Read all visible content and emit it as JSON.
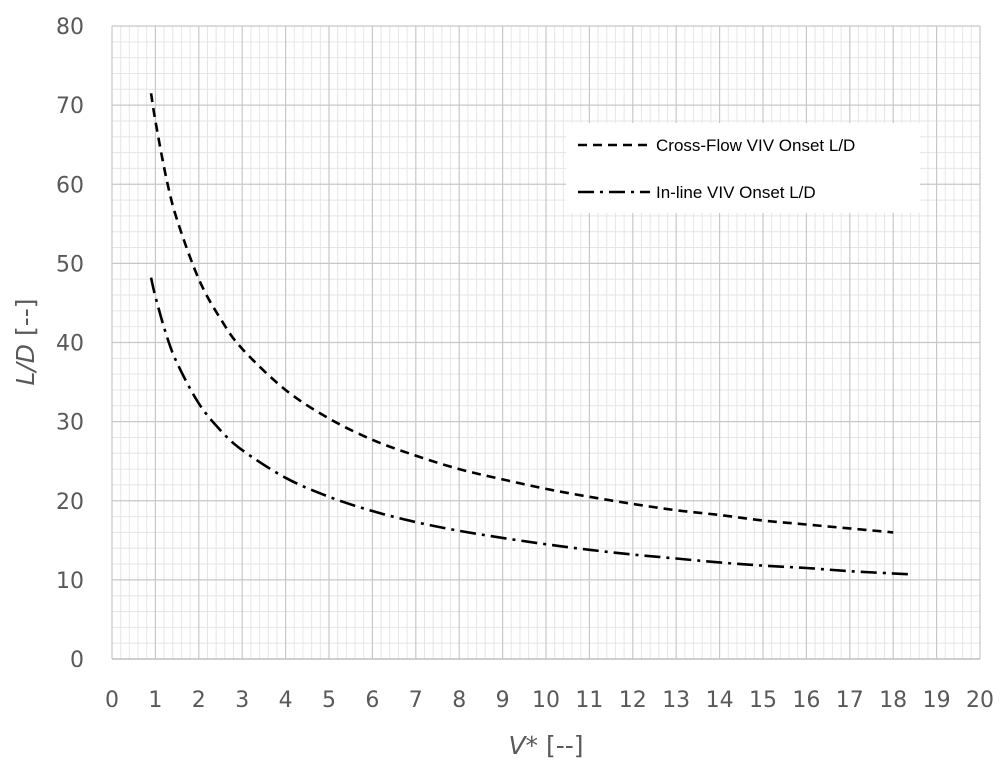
{
  "chart_data": {
    "type": "line",
    "xlabel_var": "V*",
    "xlabel_unit": " [--]",
    "ylabel_var": "L/D",
    "ylabel_unit": "  [--]",
    "xlim": [
      0,
      20
    ],
    "ylim": [
      0,
      80
    ],
    "x_ticks": [
      "0",
      "1",
      "2",
      "3",
      "4",
      "5",
      "6",
      "7",
      "8",
      "9",
      "10",
      "11",
      "12",
      "13",
      "14",
      "15",
      "16",
      "17",
      "18",
      "19",
      "20"
    ],
    "y_ticks": [
      "0",
      "10",
      "20",
      "30",
      "40",
      "50",
      "60",
      "70",
      "80"
    ],
    "grid": true,
    "minor_grid": true,
    "legend_position": "top-right",
    "series": [
      {
        "name": "Cross-Flow VIV Onset L/D",
        "style": "dashed",
        "color": "#000000",
        "x": [
          0.9,
          1.0,
          1.25,
          1.5,
          2.0,
          2.5,
          3.0,
          4.0,
          5.0,
          6.0,
          7.0,
          8.0,
          9.0,
          10.0,
          11.0,
          12.0,
          13.0,
          14.0,
          15.0,
          16.0,
          17.0,
          18.0
        ],
        "y": [
          71.5,
          68.0,
          60.8,
          55.5,
          48.0,
          43.0,
          39.2,
          34.0,
          30.4,
          27.7,
          25.7,
          24.0,
          22.7,
          21.5,
          20.5,
          19.6,
          18.8,
          18.2,
          17.5,
          17.0,
          16.5,
          16.0
        ]
      },
      {
        "name": "In-line VIV Onset L/D",
        "style": "dash-dot",
        "color": "#000000",
        "x": [
          0.9,
          1.0,
          1.25,
          1.5,
          2.0,
          2.5,
          3.0,
          4.0,
          5.0,
          6.0,
          7.0,
          8.0,
          9.0,
          10.0,
          11.0,
          12.0,
          13.0,
          14.0,
          15.0,
          16.0,
          17.0,
          18.4
        ],
        "y": [
          48.2,
          45.8,
          41.0,
          37.4,
          32.3,
          28.9,
          26.4,
          22.9,
          20.5,
          18.7,
          17.3,
          16.2,
          15.3,
          14.5,
          13.8,
          13.2,
          12.7,
          12.2,
          11.8,
          11.5,
          11.1,
          10.7
        ]
      }
    ]
  }
}
